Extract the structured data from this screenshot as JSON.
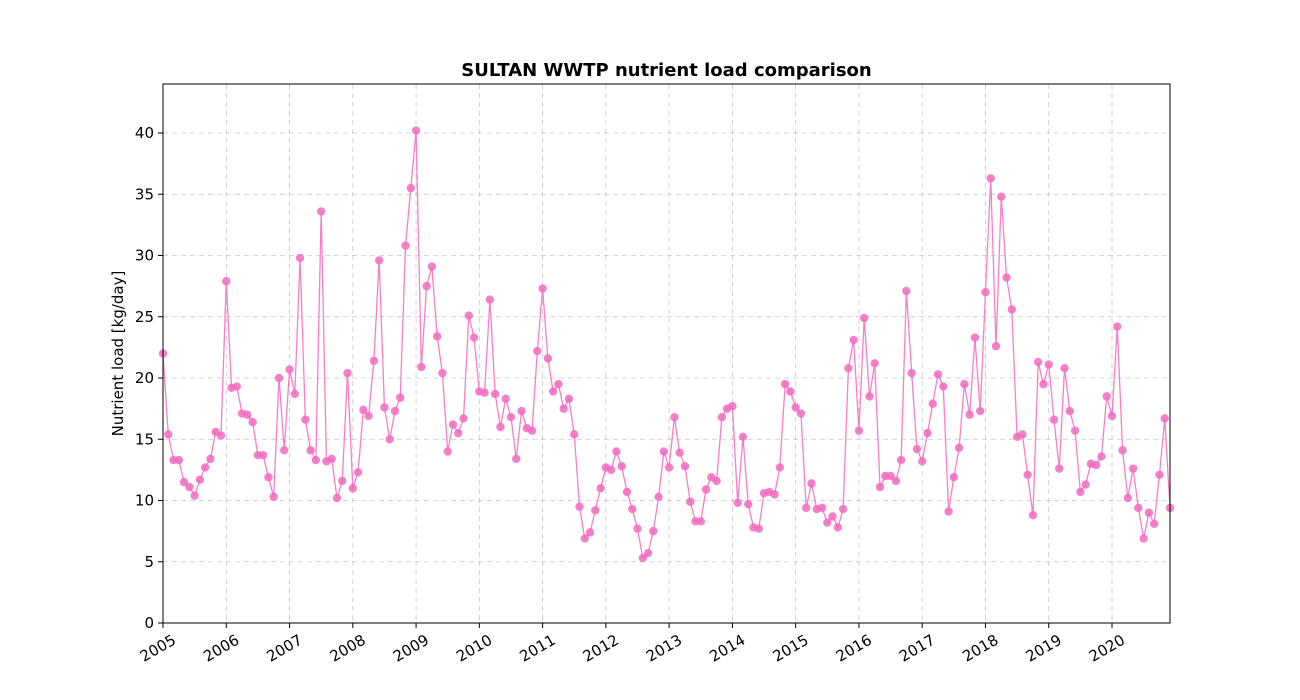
{
  "chart_data": {
    "type": "line",
    "title": "SULTAN WWTP nutrient load comparison",
    "xlabel": "",
    "ylabel": "Nutrient load [kg/day]",
    "ylim": [
      0,
      44
    ],
    "xlim": [
      "2005-01",
      "2020-12"
    ],
    "grid": true,
    "grid_style": "dashed",
    "marker": "circle",
    "colors": {
      "series": "#f77fc8",
      "marker": "#f06bbf"
    },
    "yticks": [
      "0",
      "5",
      "10",
      "15",
      "20",
      "25",
      "30",
      "35",
      "40"
    ],
    "xticks": [
      "2005",
      "2006",
      "2007",
      "2008",
      "2009",
      "2010",
      "2011",
      "2012",
      "2013",
      "2014",
      "2015",
      "2016",
      "2017",
      "2018",
      "2019",
      "2020"
    ],
    "series": [
      {
        "x": [
          "2005-01",
          "2005-02",
          "2005-03",
          "2005-04",
          "2005-05",
          "2005-06",
          "2005-07",
          "2005-08",
          "2005-09",
          "2005-10",
          "2005-11",
          "2005-12",
          "2006-01",
          "2006-02",
          "2006-03",
          "2006-04",
          "2006-05",
          "2006-06",
          "2006-07",
          "2006-08",
          "2006-09",
          "2006-10",
          "2006-11",
          "2006-12",
          "2007-01",
          "2007-02",
          "2007-03",
          "2007-04",
          "2007-05",
          "2007-06",
          "2007-07",
          "2007-08",
          "2007-09",
          "2007-10",
          "2007-11",
          "2007-12",
          "2008-01",
          "2008-02",
          "2008-03",
          "2008-04",
          "2008-05",
          "2008-06",
          "2008-07",
          "2008-08",
          "2008-09",
          "2008-10",
          "2008-11",
          "2008-12",
          "2009-01",
          "2009-02",
          "2009-03",
          "2009-04",
          "2009-05",
          "2009-06",
          "2009-07",
          "2009-08",
          "2009-09",
          "2009-10",
          "2009-11",
          "2009-12",
          "2010-01",
          "2010-02",
          "2010-03",
          "2010-04",
          "2010-05",
          "2010-06",
          "2010-07",
          "2010-08",
          "2010-09",
          "2010-10",
          "2010-11",
          "2010-12",
          "2011-01",
          "2011-02",
          "2011-03",
          "2011-04",
          "2011-05",
          "2011-06",
          "2011-07",
          "2011-08",
          "2011-09",
          "2011-10",
          "2011-11",
          "2011-12",
          "2012-01",
          "2012-02",
          "2012-03",
          "2012-04",
          "2012-05",
          "2012-06",
          "2012-07",
          "2012-08",
          "2012-09",
          "2012-10",
          "2012-11",
          "2012-12",
          "2013-01",
          "2013-02",
          "2013-03",
          "2013-04",
          "2013-05",
          "2013-06",
          "2013-07",
          "2013-08",
          "2013-09",
          "2013-10",
          "2013-11",
          "2013-12",
          "2014-01",
          "2014-02",
          "2014-03",
          "2014-04",
          "2014-05",
          "2014-06",
          "2014-07",
          "2014-08",
          "2014-09",
          "2014-10",
          "2014-11",
          "2014-12",
          "2015-01",
          "2015-02",
          "2015-03",
          "2015-04",
          "2015-05",
          "2015-06",
          "2015-07",
          "2015-08",
          "2015-09",
          "2015-10",
          "2015-11",
          "2015-12",
          "2016-01",
          "2016-02",
          "2016-03",
          "2016-04",
          "2016-05",
          "2016-06",
          "2016-07",
          "2016-08",
          "2016-09",
          "2016-10",
          "2016-11",
          "2016-12",
          "2017-01",
          "2017-02",
          "2017-03",
          "2017-04",
          "2017-05",
          "2017-06",
          "2017-07",
          "2017-08",
          "2017-09",
          "2017-10",
          "2017-11",
          "2017-12",
          "2018-01",
          "2018-02",
          "2018-03",
          "2018-04",
          "2018-05",
          "2018-06",
          "2018-07",
          "2018-08",
          "2018-09",
          "2018-10",
          "2018-11",
          "2018-12",
          "2019-01",
          "2019-02",
          "2019-03",
          "2019-04",
          "2019-05",
          "2019-06",
          "2019-07",
          "2019-08",
          "2019-09",
          "2019-10",
          "2019-11",
          "2019-12",
          "2020-01",
          "2020-02",
          "2020-03",
          "2020-04",
          "2020-05",
          "2020-06",
          "2020-07",
          "2020-08",
          "2020-09",
          "2020-10",
          "2020-11",
          "2020-12"
        ],
        "y": [
          22.0,
          15.4,
          13.3,
          13.3,
          11.5,
          11.1,
          10.4,
          11.7,
          12.7,
          13.4,
          15.6,
          15.3,
          27.9,
          19.2,
          19.3,
          17.1,
          17.0,
          16.4,
          13.7,
          13.7,
          11.9,
          10.3,
          20.0,
          14.1,
          20.7,
          18.7,
          29.8,
          16.6,
          14.1,
          13.3,
          33.6,
          13.2,
          13.4,
          10.2,
          11.6,
          20.4,
          11.0,
          12.3,
          17.4,
          16.9,
          21.4,
          29.6,
          17.6,
          15.0,
          17.3,
          18.4,
          30.8,
          35.5,
          40.2,
          20.9,
          27.5,
          29.1,
          23.4,
          20.4,
          14.0,
          16.2,
          15.5,
          16.7,
          25.1,
          23.3,
          18.9,
          18.8,
          26.4,
          18.7,
          16.0,
          18.3,
          16.8,
          13.4,
          17.3,
          15.9,
          15.7,
          22.2,
          27.3,
          21.6,
          18.9,
          19.5,
          17.5,
          18.3,
          15.4,
          9.5,
          6.9,
          7.4,
          9.2,
          11.0,
          12.7,
          12.5,
          14.0,
          12.8,
          10.7,
          9.3,
          7.7,
          5.3,
          5.7,
          7.5,
          10.3,
          14.0,
          12.7,
          16.8,
          13.9,
          12.8,
          9.9,
          8.3,
          8.3,
          10.9,
          11.9,
          11.6,
          16.8,
          17.5,
          17.7,
          9.8,
          15.2,
          9.7,
          7.8,
          7.7,
          10.6,
          10.7,
          10.5,
          12.7,
          19.5,
          18.9,
          17.6,
          17.1,
          9.4,
          11.4,
          9.3,
          9.4,
          8.2,
          8.7,
          7.8,
          9.3,
          20.8,
          23.1,
          15.7,
          24.9,
          18.5,
          21.2,
          11.1,
          12.0,
          12.0,
          11.6,
          13.3,
          27.1,
          20.4,
          14.2,
          13.2,
          15.5,
          17.9,
          20.3,
          19.3,
          9.1,
          11.9,
          14.3,
          19.5,
          17.0,
          23.3,
          17.3,
          27.0,
          36.3,
          22.6,
          34.8,
          28.2,
          25.6,
          15.2,
          15.4,
          12.1,
          8.8,
          21.3,
          19.5,
          21.1,
          16.6,
          12.6,
          20.8,
          17.3,
          15.7,
          10.7,
          11.3,
          13.0,
          12.9,
          13.6,
          18.5,
          16.9,
          24.2,
          14.1,
          10.2,
          12.6,
          9.4,
          6.9,
          9.0,
          8.1,
          12.1,
          16.7,
          9.4
        ]
      }
    ]
  }
}
